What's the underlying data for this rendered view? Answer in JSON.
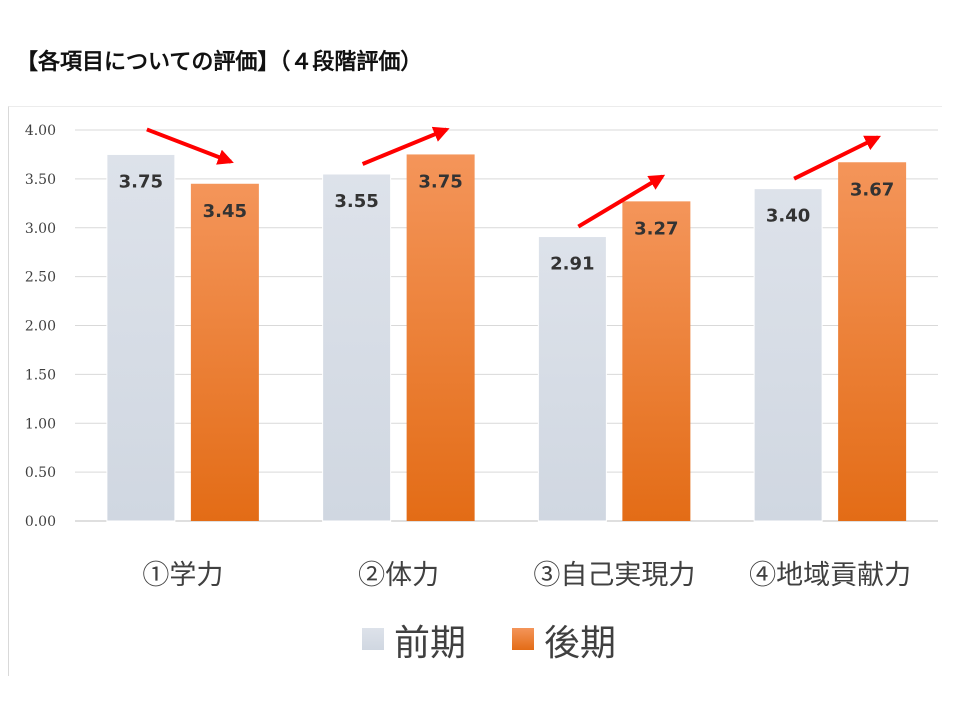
{
  "title": "【各項目についての評価】（４段階評価）",
  "chart_data": {
    "type": "bar",
    "categories": [
      "①学力",
      "②体力",
      "③自己実現力",
      "④地域貢献力"
    ],
    "series": [
      {
        "name": "前期",
        "values": [
          3.75,
          3.55,
          2.91,
          3.4
        ],
        "value_labels": [
          "3.75",
          "3.55",
          "2.91",
          "3.40"
        ],
        "color": "#d6dce4"
      },
      {
        "name": "後期",
        "values": [
          3.45,
          3.75,
          3.27,
          3.67
        ],
        "value_labels": [
          "3.45",
          "3.75",
          "3.27",
          "3.67"
        ],
        "color": "#ed7d31"
      }
    ],
    "ylim": [
      0,
      4
    ],
    "y_ticks": [
      "0.00",
      "0.50",
      "1.00",
      "1.50",
      "2.00",
      "2.50",
      "3.00",
      "3.50",
      "4.00"
    ],
    "grid": true,
    "legend": "bottom",
    "trend_arrows": [
      "down",
      "up",
      "up",
      "up"
    ],
    "arrow_color": "#ff0000"
  }
}
